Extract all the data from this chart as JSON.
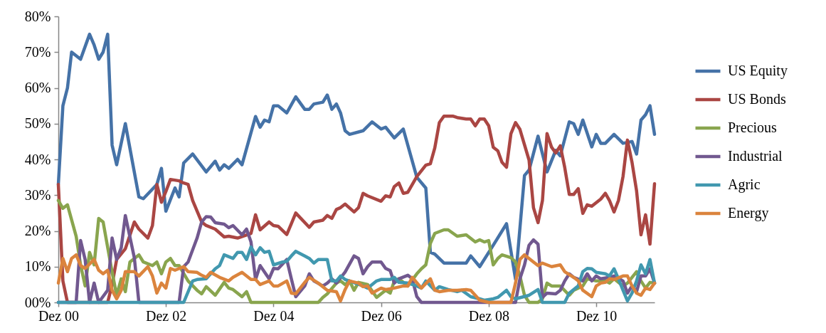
{
  "chart_data": {
    "type": "line",
    "xlim": [
      "2000-12",
      "2012-01"
    ],
    "xticks": [
      {
        "value": "2000-12",
        "label": "Dez 00"
      },
      {
        "value": "2002-12",
        "label": "Dez 02"
      },
      {
        "value": "2004-12",
        "label": "Dez 04"
      },
      {
        "value": "2006-12",
        "label": "Dez 06"
      },
      {
        "value": "2008-12",
        "label": "Dez 08"
      },
      {
        "value": "2010-12",
        "label": "Dez 10"
      }
    ],
    "ylim": [
      0,
      80
    ],
    "yticks": [
      {
        "value": 0,
        "label": "00%"
      },
      {
        "value": 10,
        "label": "10%"
      },
      {
        "value": 20,
        "label": "20%"
      },
      {
        "value": 30,
        "label": "30%"
      },
      {
        "value": 40,
        "label": "40%"
      },
      {
        "value": 50,
        "label": "50%"
      },
      {
        "value": 60,
        "label": "60%"
      },
      {
        "value": 70,
        "label": "70%"
      },
      {
        "value": 80,
        "label": "80%"
      }
    ],
    "legend": "right",
    "series": [
      {
        "name": "US Equity",
        "color": "#4572a7",
        "x": [
          "2000-12",
          "2001-01",
          "2001-02",
          "2001-03",
          "2001-05",
          "2001-07",
          "2001-08",
          "2001-09",
          "2001-10",
          "2001-11",
          "2001-12",
          "2002-01",
          "2002-03",
          "2002-06",
          "2002-07",
          "2002-10",
          "2002-11",
          "2002-12",
          "2003-02",
          "2003-03",
          "2003-04",
          "2003-06",
          "2003-09",
          "2003-11",
          "2003-12",
          "2004-01",
          "2004-02",
          "2004-04",
          "2004-05",
          "2004-08",
          "2004-09",
          "2004-10",
          "2004-11",
          "2004-12",
          "2005-01",
          "2005-03",
          "2005-05",
          "2005-07",
          "2005-08",
          "2005-09",
          "2005-11",
          "2005-12",
          "2006-01",
          "2006-02",
          "2006-03",
          "2006-04",
          "2006-05",
          "2006-08",
          "2006-10",
          "2006-12",
          "2007-01",
          "2007-03",
          "2007-05",
          "2007-08",
          "2007-10",
          "2007-11",
          "2007-12",
          "2008-02",
          "2008-07",
          "2008-08",
          "2008-10",
          "2009-01",
          "2009-04",
          "2009-06",
          "2009-08",
          "2009-09",
          "2009-11",
          "2010-01",
          "2010-03",
          "2010-04",
          "2010-06",
          "2010-07",
          "2010-08",
          "2010-09",
          "2010-11",
          "2010-12",
          "2011-01",
          "2011-02",
          "2011-04",
          "2011-06",
          "2011-08",
          "2011-09",
          "2011-10",
          "2011-11",
          "2011-12",
          "2012-01"
        ],
        "values": [
          33,
          55,
          60,
          70,
          68,
          75,
          72,
          68,
          70,
          75,
          44,
          38.5,
          50,
          29.5,
          29,
          33,
          37.5,
          25.5,
          32,
          29.5,
          39,
          41.5,
          36.5,
          39.5,
          37,
          38.5,
          37.5,
          40,
          38.5,
          52,
          49,
          51,
          50.5,
          55,
          55,
          53,
          57.5,
          54,
          54,
          55.5,
          56,
          58,
          54,
          55.5,
          53,
          48,
          47,
          48,
          50.5,
          48.5,
          49,
          46,
          48.5,
          35,
          32,
          14,
          13.5,
          11,
          11,
          13,
          10,
          16,
          22,
          6.5,
          35.5,
          37,
          46.5,
          36.5,
          42.5,
          41,
          50.5,
          50,
          47,
          51,
          43.5,
          47,
          44.5,
          44.5,
          47,
          44.5,
          45,
          41.5,
          51,
          52.5,
          55,
          47
        ]
      },
      {
        "name": "US Bonds",
        "color": "#aa4643",
        "x": [
          "2000-12",
          "2001-01",
          "2001-02",
          "2001-11",
          "2001-12",
          "2002-01",
          "2002-03",
          "2002-05",
          "2002-06",
          "2002-08",
          "2002-09",
          "2002-10",
          "2002-11",
          "2002-12",
          "2003-01",
          "2003-03",
          "2003-04",
          "2003-05",
          "2003-06",
          "2003-08",
          "2003-09",
          "2003-11",
          "2004-01",
          "2004-02",
          "2004-04",
          "2004-07",
          "2004-08",
          "2004-09",
          "2004-11",
          "2004-12",
          "2005-01",
          "2005-03",
          "2005-04",
          "2005-05",
          "2005-08",
          "2005-09",
          "2005-11",
          "2005-12",
          "2006-01",
          "2006-02",
          "2006-03",
          "2006-04",
          "2006-06",
          "2006-07",
          "2006-08",
          "2006-09",
          "2006-12",
          "2007-01",
          "2007-02",
          "2007-03",
          "2007-04",
          "2007-05",
          "2007-06",
          "2007-08",
          "2007-10",
          "2007-11",
          "2007-12",
          "2008-01",
          "2008-02",
          "2008-04",
          "2008-05",
          "2008-07",
          "2008-08",
          "2008-09",
          "2008-10",
          "2008-11",
          "2008-12",
          "2009-01",
          "2009-02",
          "2009-03",
          "2009-04",
          "2009-05",
          "2009-06",
          "2009-07",
          "2009-09",
          "2009-10",
          "2009-11",
          "2009-12",
          "2010-01",
          "2010-02",
          "2010-03",
          "2010-04",
          "2010-05",
          "2010-06",
          "2010-07",
          "2010-08",
          "2010-09",
          "2010-10",
          "2010-11",
          "2011-01",
          "2011-02",
          "2011-03",
          "2011-04",
          "2011-05",
          "2011-06",
          "2011-07",
          "2011-08",
          "2011-09",
          "2011-10",
          "2011-11",
          "2011-12",
          "2012-01"
        ],
        "values": [
          33,
          6,
          0,
          0,
          5,
          12,
          15,
          22.5,
          20.5,
          18,
          21.5,
          33,
          28,
          31,
          34.4,
          34,
          33.4,
          33,
          28.5,
          22.5,
          21.5,
          20.5,
          18.3,
          18.5,
          18,
          19.3,
          24.5,
          20.3,
          22.5,
          21.5,
          21.3,
          19,
          22,
          25,
          21,
          22.5,
          23,
          24.3,
          23.5,
          26,
          26.5,
          27.5,
          25.3,
          26.5,
          30.5,
          29.8,
          28.3,
          29.8,
          29.5,
          32.4,
          33.4,
          30.5,
          30.8,
          35.2,
          38.4,
          38.8,
          43.2,
          50.3,
          52.1,
          52.1,
          51.7,
          51.3,
          51.3,
          49.4,
          51.3,
          51.3,
          49.4,
          43.4,
          42.4,
          39.2,
          37.8,
          47.2,
          50.3,
          48.4,
          39.8,
          26.5,
          22.3,
          28.5,
          47.2,
          43.4,
          41.8,
          43.8,
          37.8,
          30.2,
          30.2,
          31.8,
          24.9,
          27.3,
          26.9,
          28.9,
          30.5,
          28.5,
          25.3,
          28.5,
          35.2,
          45.4,
          39.2,
          31.2,
          18.9,
          24.5,
          16.3,
          33.2
        ]
      },
      {
        "name": "Precious",
        "color": "#89a54e",
        "x": [
          "2000-12",
          "2001-01",
          "2001-02",
          "2001-04",
          "2001-05",
          "2001-06",
          "2001-07",
          "2001-08",
          "2001-09",
          "2001-10",
          "2001-12",
          "2002-01",
          "2002-02",
          "2002-03",
          "2002-04",
          "2002-06",
          "2002-07",
          "2002-09",
          "2002-10",
          "2002-11",
          "2002-12",
          "2003-01",
          "2003-02",
          "2003-03",
          "2003-05",
          "2003-07",
          "2003-08",
          "2003-09",
          "2003-11",
          "2004-01",
          "2004-02",
          "2004-03",
          "2004-05",
          "2004-06",
          "2004-07",
          "2005-10",
          "2005-11",
          "2005-12",
          "2006-02",
          "2006-03",
          "2006-04",
          "2006-05",
          "2006-06",
          "2006-07",
          "2006-09",
          "2006-11",
          "2006-12",
          "2007-01",
          "2007-02",
          "2007-03",
          "2007-04",
          "2007-06",
          "2007-08",
          "2007-09",
          "2007-10",
          "2007-11",
          "2007-12",
          "2008-02",
          "2008-03",
          "2008-05",
          "2008-07",
          "2008-08",
          "2008-09",
          "2008-10",
          "2008-11",
          "2008-12",
          "2009-01",
          "2009-02",
          "2009-03",
          "2009-05",
          "2009-06",
          "2009-07",
          "2009-08",
          "2009-09",
          "2009-11",
          "2009-12",
          "2010-01",
          "2010-02",
          "2010-04",
          "2010-06",
          "2010-07",
          "2010-09",
          "2010-10",
          "2010-12",
          "2011-02",
          "2011-03",
          "2011-04",
          "2011-06",
          "2011-07",
          "2011-09",
          "2011-10",
          "2011-11",
          "2011-12",
          "2012-01"
        ],
        "values": [
          28.5,
          26.3,
          27.3,
          18.5,
          10.5,
          4.6,
          14,
          10.5,
          23.5,
          22.5,
          8.5,
          2,
          6.6,
          3,
          11.3,
          13.3,
          11.3,
          10.3,
          11.3,
          8,
          11.3,
          12.3,
          10.3,
          10.3,
          6,
          3.4,
          2.4,
          4.4,
          2,
          5.6,
          4,
          3.6,
          1.6,
          3,
          0,
          0,
          1.4,
          2.4,
          5.4,
          6,
          5,
          6,
          3.4,
          5.6,
          5,
          1.4,
          2.4,
          3.4,
          2.6,
          6,
          6.6,
          4.6,
          8,
          9.4,
          10.5,
          16.5,
          19.3,
          20.3,
          20.3,
          18.5,
          18.9,
          17.9,
          16.9,
          17.5,
          16.9,
          17.3,
          10.5,
          12.3,
          13.3,
          12.5,
          11.3,
          7.4,
          2,
          0,
          0,
          1,
          5.4,
          4.6,
          4.6,
          2,
          3.4,
          4.6,
          6.6,
          6,
          6,
          5.4,
          6.6,
          4.6,
          5.4,
          8.6,
          6,
          4,
          5.6,
          5.4
        ]
      },
      {
        "name": "Industrial",
        "color": "#71588f",
        "x": [
          "2000-12",
          "2001-04",
          "2001-05",
          "2001-06",
          "2001-07",
          "2001-08",
          "2001-09",
          "2001-11",
          "2001-12",
          "2002-01",
          "2002-02",
          "2002-03",
          "2002-05",
          "2002-06",
          "2003-03",
          "2003-04",
          "2003-05",
          "2003-07",
          "2003-08",
          "2003-09",
          "2003-10",
          "2003-11",
          "2004-01",
          "2004-02",
          "2004-03",
          "2004-05",
          "2004-06",
          "2004-07",
          "2004-08",
          "2004-09",
          "2004-11",
          "2004-12",
          "2005-01",
          "2005-03",
          "2005-04",
          "2005-05",
          "2005-07",
          "2005-08",
          "2005-09",
          "2005-11",
          "2005-12",
          "2006-01",
          "2006-02",
          "2006-04",
          "2006-06",
          "2006-07",
          "2006-08",
          "2006-09",
          "2006-10",
          "2006-12",
          "2007-01",
          "2007-02",
          "2007-03",
          "2007-04",
          "2007-06",
          "2007-07",
          "2007-08",
          "2007-09",
          "2009-06",
          "2009-07",
          "2009-08",
          "2009-09",
          "2009-10",
          "2009-11",
          "2009-12",
          "2010-01",
          "2010-03",
          "2010-04",
          "2010-05",
          "2010-06",
          "2010-07",
          "2010-09",
          "2010-10",
          "2010-11",
          "2010-12",
          "2011-01",
          "2011-03",
          "2011-04",
          "2011-06",
          "2011-07",
          "2011-08",
          "2011-09",
          "2011-10",
          "2011-11",
          "2011-12",
          "2012-01"
        ],
        "values": [
          0,
          0,
          17.3,
          12,
          0,
          5.4,
          0,
          3.4,
          18,
          12,
          15.3,
          24.3,
          12.5,
          0,
          0,
          10,
          11.3,
          18,
          22.5,
          24,
          23.9,
          22.3,
          21.9,
          20.9,
          21.5,
          18.9,
          20.5,
          16.9,
          6.4,
          10.3,
          6.6,
          9.5,
          9.4,
          12,
          6.6,
          1.6,
          4.6,
          8,
          6,
          4.6,
          5.4,
          6.6,
          5.4,
          8.5,
          13,
          12.3,
          8,
          10,
          11.3,
          11.3,
          9.5,
          8.9,
          5.4,
          6.6,
          7.6,
          6.6,
          1.6,
          0,
          0,
          6.6,
          10.5,
          16,
          17.5,
          16.3,
          1.4,
          2.6,
          2.4,
          3.4,
          6,
          8,
          7,
          6,
          8,
          6,
          7.4,
          6.6,
          7,
          7.4,
          6,
          2.6,
          4.6,
          3,
          7.4,
          7.4,
          9.4,
          5.4
        ]
      },
      {
        "name": "Agric",
        "color": "#4198af",
        "x": [
          "2000-12",
          "2003-04",
          "2003-06",
          "2003-07",
          "2003-09",
          "2003-11",
          "2003-12",
          "2004-01",
          "2004-03",
          "2004-04",
          "2004-05",
          "2004-06",
          "2004-07",
          "2004-08",
          "2004-09",
          "2004-10",
          "2004-11",
          "2004-12",
          "2005-02",
          "2005-03",
          "2005-04",
          "2005-05",
          "2005-07",
          "2005-08",
          "2005-09",
          "2005-10",
          "2005-12",
          "2006-01",
          "2006-02",
          "2006-03",
          "2006-04",
          "2006-05",
          "2006-08",
          "2006-09",
          "2006-11",
          "2006-12",
          "2007-02",
          "2007-03",
          "2007-04",
          "2007-06",
          "2007-08",
          "2007-09",
          "2007-10",
          "2007-12",
          "2008-01",
          "2008-03",
          "2008-05",
          "2008-06",
          "2008-08",
          "2008-10",
          "2008-11",
          "2009-01",
          "2009-02",
          "2009-04",
          "2009-05",
          "2009-06",
          "2009-09",
          "2009-11",
          "2009-12",
          "2010-05",
          "2010-06",
          "2010-08",
          "2010-09",
          "2010-10",
          "2010-11",
          "2010-12",
          "2011-02",
          "2011-03",
          "2011-04",
          "2011-05",
          "2011-06",
          "2011-07",
          "2011-08",
          "2011-09",
          "2011-10",
          "2011-11",
          "2011-12",
          "2012-01"
        ],
        "values": [
          0,
          0,
          6,
          6.4,
          6.6,
          9.4,
          10.3,
          13.3,
          12.3,
          14,
          14,
          12,
          15.5,
          13.3,
          15.3,
          14,
          14.3,
          10.5,
          11.3,
          11.5,
          13,
          14.3,
          13,
          12.3,
          11,
          12,
          12,
          6,
          6,
          7.4,
          6.4,
          6,
          4.6,
          4,
          6,
          6.4,
          6.4,
          7,
          5.6,
          5.4,
          4.6,
          4,
          6,
          3.4,
          4.4,
          3.6,
          3,
          3.4,
          1.6,
          1,
          0.6,
          1,
          1.4,
          3.4,
          1.6,
          1,
          2,
          3.6,
          0,
          0,
          2.6,
          4.6,
          8.6,
          9.5,
          9.4,
          8.4,
          8,
          7.4,
          9.4,
          6.6,
          3.4,
          0.4,
          2.6,
          6,
          10.5,
          8,
          12,
          5.4
        ]
      },
      {
        "name": "Energy",
        "color": "#db843d",
        "x": [
          "2000-12",
          "2001-01",
          "2001-02",
          "2001-03",
          "2001-04",
          "2001-05",
          "2001-06",
          "2001-08",
          "2001-09",
          "2001-10",
          "2001-11",
          "2001-12",
          "2002-01",
          "2002-02",
          "2002-03",
          "2002-05",
          "2002-06",
          "2002-08",
          "2002-09",
          "2002-10",
          "2002-11",
          "2002-12",
          "2003-01",
          "2003-02",
          "2003-04",
          "2003-05",
          "2003-07",
          "2003-08",
          "2003-09",
          "2003-10",
          "2003-12",
          "2004-02",
          "2004-03",
          "2004-05",
          "2004-07",
          "2004-08",
          "2004-09",
          "2004-11",
          "2004-12",
          "2005-01",
          "2005-03",
          "2005-04",
          "2005-05",
          "2005-07",
          "2005-08",
          "2005-10",
          "2005-12",
          "2006-02",
          "2006-03",
          "2006-04",
          "2006-05",
          "2006-07",
          "2006-08",
          "2006-09",
          "2006-10",
          "2006-12",
          "2007-01",
          "2007-03",
          "2007-05",
          "2007-06",
          "2007-07",
          "2007-09",
          "2007-11",
          "2007-12",
          "2008-01",
          "2008-03",
          "2008-05",
          "2008-07",
          "2008-08",
          "2008-09",
          "2008-10",
          "2008-12",
          "2009-05",
          "2009-06",
          "2009-07",
          "2009-08",
          "2009-10",
          "2009-11",
          "2009-12",
          "2010-02",
          "2010-04",
          "2010-05",
          "2010-07",
          "2010-08",
          "2010-09",
          "2010-11",
          "2010-12",
          "2011-01",
          "2011-02",
          "2011-03",
          "2011-04",
          "2011-06",
          "2011-07",
          "2011-08",
          "2011-09",
          "2011-10",
          "2011-11",
          "2011-12",
          "2012-01"
        ],
        "values": [
          5.4,
          12.3,
          8.6,
          12.3,
          13.3,
          10.3,
          9.5,
          12,
          9,
          8,
          9,
          3.4,
          1,
          3.4,
          8.6,
          8.6,
          7.4,
          10,
          7.4,
          2.6,
          5.4,
          4,
          9.5,
          9,
          10,
          8.6,
          8.4,
          7.6,
          7,
          8.4,
          7,
          6,
          7,
          8.4,
          6.4,
          6.4,
          5,
          6,
          4.6,
          4.6,
          6,
          2.6,
          2.4,
          5.6,
          7,
          5.4,
          3.4,
          3,
          0.4,
          3.6,
          6,
          5.4,
          4.4,
          4.6,
          2.6,
          4,
          3.6,
          4,
          4.6,
          4.6,
          7,
          4,
          6.6,
          3.4,
          3,
          3.4,
          3.4,
          3.6,
          3.4,
          2,
          0.6,
          0,
          0,
          5.4,
          12,
          13.3,
          11.3,
          10.3,
          11,
          10,
          10.5,
          8.6,
          7,
          6,
          3.4,
          1.6,
          4.6,
          5.4,
          5.6,
          6.6,
          6.4,
          7.4,
          7.4,
          4.6,
          2.6,
          2,
          4,
          3.6,
          5.4
        ]
      }
    ]
  }
}
